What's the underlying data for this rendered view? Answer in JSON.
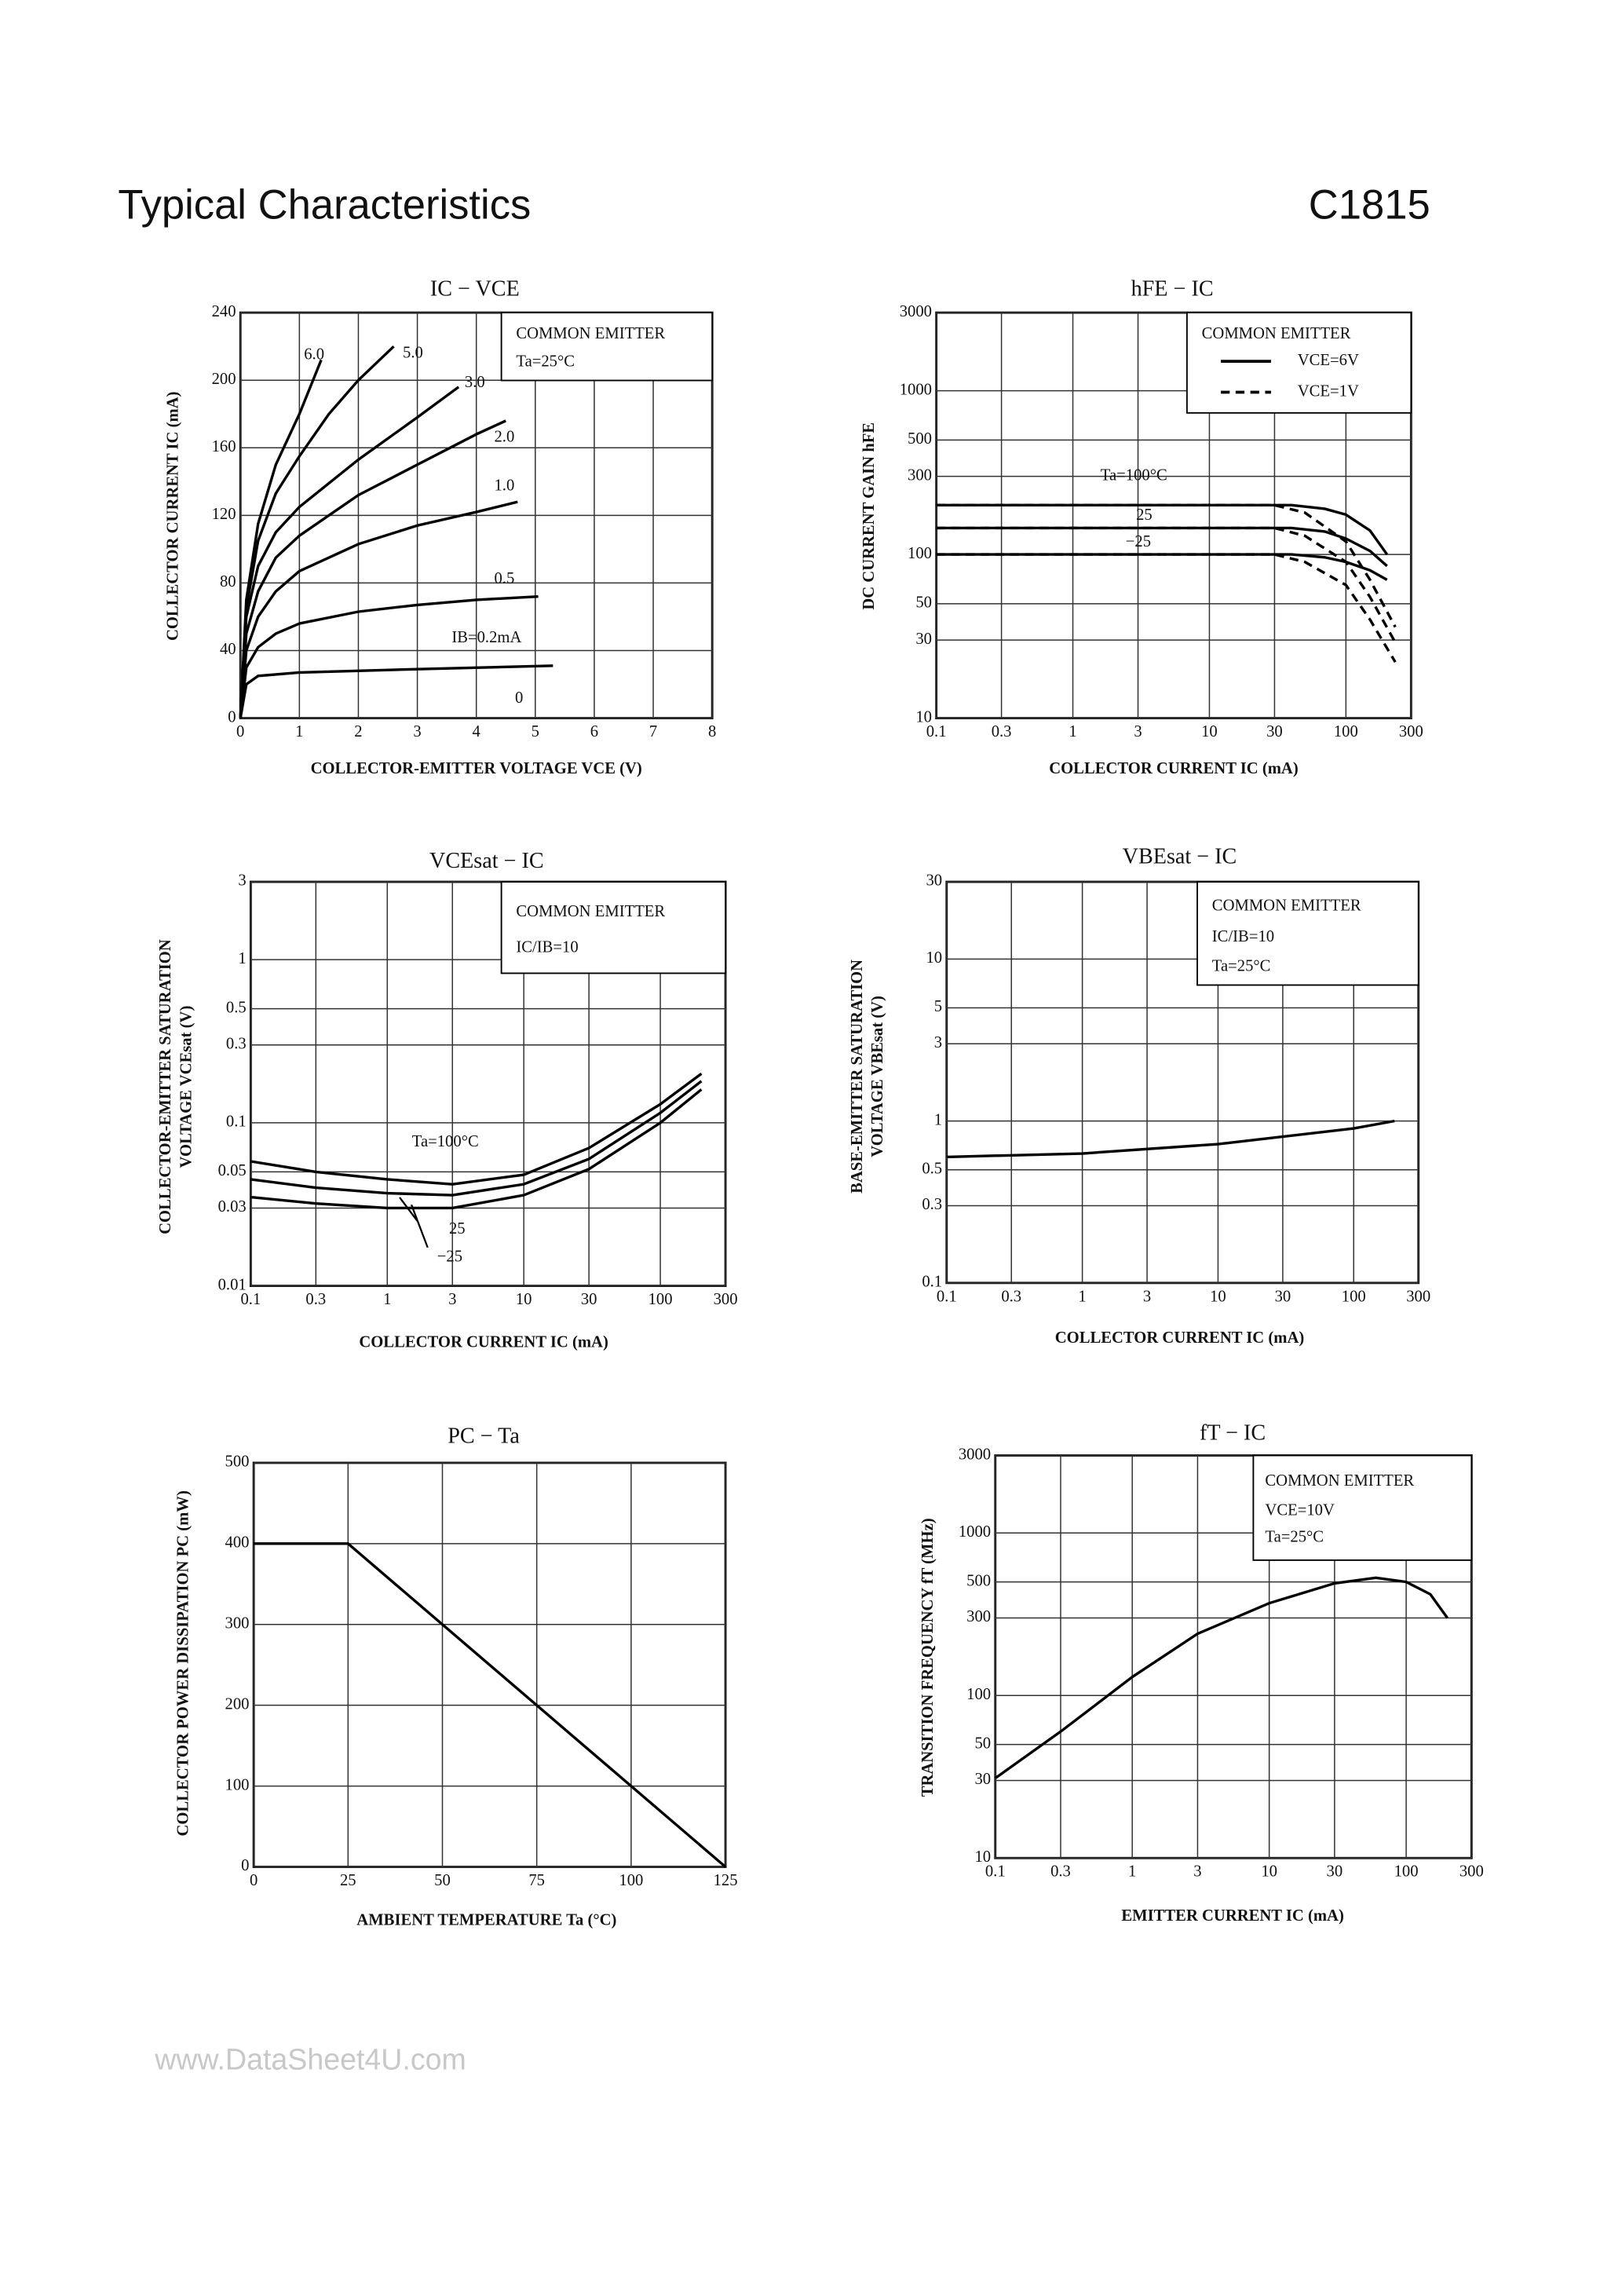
{
  "header": {
    "title": "Typical Characteristics",
    "part": "C1815",
    "watermark": "www.DataSheet4U.com"
  },
  "chart_data": [
    {
      "type": "line",
      "title": "IC − VCE",
      "xlabel": "COLLECTOR-EMITTER VOLTAGE VCE (V)",
      "ylabel": "COLLECTOR CURRENT IC (mA)",
      "xlim": [
        0,
        8
      ],
      "ylim": [
        0,
        240
      ],
      "xticks": [
        0,
        1,
        2,
        3,
        4,
        5,
        6,
        7,
        8
      ],
      "yticks": [
        0,
        40,
        80,
        120,
        160,
        200,
        240
      ],
      "xlog": false,
      "ylog": false,
      "grid": true,
      "box": [
        "COMMON EMITTER",
        "Ta=25°C"
      ],
      "labels": [
        "6.0",
        "5.0",
        "3.0",
        "2.0",
        "1.0",
        "0.5",
        "IB=0.2mA",
        "0"
      ],
      "series": [
        {
          "color": "#000000",
          "dash": false,
          "x": [
            0,
            0.1,
            0.3,
            0.6,
            1.0,
            1.37
          ],
          "values": [
            0,
            70,
            115,
            150,
            180,
            212
          ]
        },
        {
          "color": "#000000",
          "dash": false,
          "x": [
            0,
            0.1,
            0.3,
            0.6,
            1,
            1.5,
            2,
            2.6
          ],
          "values": [
            0,
            65,
            105,
            133,
            155,
            180,
            200,
            220
          ]
        },
        {
          "color": "#000000",
          "dash": false,
          "x": [
            0,
            0.1,
            0.3,
            0.6,
            1,
            2,
            3,
            3.7
          ],
          "values": [
            0,
            60,
            90,
            110,
            125,
            153,
            178,
            196
          ]
        },
        {
          "color": "#000000",
          "dash": false,
          "x": [
            0,
            0.1,
            0.3,
            0.6,
            1,
            2,
            3,
            4,
            4.5
          ],
          "values": [
            0,
            50,
            75,
            95,
            108,
            132,
            150,
            168,
            176
          ]
        },
        {
          "color": "#000000",
          "dash": false,
          "x": [
            0,
            0.1,
            0.3,
            0.6,
            1,
            2,
            3,
            4,
            4.7
          ],
          "values": [
            0,
            40,
            60,
            75,
            87,
            103,
            114,
            122,
            128
          ]
        },
        {
          "color": "#000000",
          "dash": false,
          "x": [
            0,
            0.1,
            0.3,
            0.6,
            1,
            2,
            3,
            4,
            5.05
          ],
          "values": [
            0,
            30,
            42,
            50,
            56,
            63,
            67,
            70,
            72
          ]
        },
        {
          "color": "#000000",
          "dash": false,
          "x": [
            0,
            0.1,
            0.3,
            1,
            3,
            5.3
          ],
          "values": [
            0,
            20,
            25,
            27,
            29,
            31
          ]
        }
      ]
    },
    {
      "type": "line",
      "title": "hFE − IC",
      "xlabel": "COLLECTOR CURRENT IC (mA)",
      "ylabel": "DC CURRENT GAIN hFE",
      "xlim": [
        0.1,
        300
      ],
      "ylim": [
        10,
        3000
      ],
      "xticks": [
        0.1,
        0.3,
        1,
        3,
        10,
        30,
        100,
        300
      ],
      "yticks": [
        10,
        30,
        50,
        100,
        300,
        500,
        1000,
        3000
      ],
      "xlog": true,
      "ylog": true,
      "grid": true,
      "box": [
        "COMMON EMITTER"
      ],
      "legend": [
        {
          "label": "VCE=6V",
          "dash": false
        },
        {
          "label": "VCE=1V",
          "dash": true
        }
      ],
      "labels": [
        "Ta=100°C",
        "25",
        "−25"
      ],
      "series": [
        {
          "color": "#000000",
          "dash": false,
          "x": [
            0.1,
            40,
            70,
            100,
            150,
            200
          ],
          "values": [
            200,
            200,
            190,
            175,
            140,
            100
          ]
        },
        {
          "color": "#000000",
          "dash": false,
          "x": [
            0.1,
            40,
            70,
            100,
            150,
            200
          ],
          "values": [
            145,
            145,
            138,
            125,
            105,
            85
          ]
        },
        {
          "color": "#000000",
          "dash": false,
          "x": [
            0.1,
            40,
            70,
            100,
            150,
            200
          ],
          "values": [
            100,
            100,
            96,
            90,
            80,
            70
          ]
        },
        {
          "color": "#000000",
          "dash": true,
          "x": [
            0.1,
            30,
            50,
            100,
            150,
            230
          ],
          "values": [
            200,
            200,
            180,
            120,
            70,
            36
          ]
        },
        {
          "color": "#000000",
          "dash": true,
          "x": [
            0.1,
            30,
            50,
            100,
            150,
            230
          ],
          "values": [
            145,
            145,
            130,
            90,
            55,
            29
          ]
        },
        {
          "color": "#000000",
          "dash": true,
          "x": [
            0.1,
            30,
            50,
            100,
            150,
            230
          ],
          "values": [
            100,
            100,
            90,
            65,
            40,
            22
          ]
        }
      ]
    },
    {
      "type": "line",
      "title": "VCEsat − IC",
      "xlabel": "COLLECTOR CURRENT IC (mA)",
      "ylabel": [
        "COLLECTOR-EMITTER SATURATION",
        "VOLTAGE VCEsat (V)"
      ],
      "xlim": [
        0.1,
        300
      ],
      "ylim": [
        0.01,
        3
      ],
      "xticks": [
        0.1,
        0.3,
        1,
        3,
        10,
        30,
        100,
        300
      ],
      "yticks": [
        0.01,
        0.03,
        0.05,
        0.1,
        0.3,
        0.5,
        1,
        3
      ],
      "xlog": true,
      "ylog": true,
      "grid": true,
      "box": [
        "COMMON EMITTER",
        "IC/IB=10"
      ],
      "labels": [
        "Ta=100°C",
        "25",
        "−25"
      ],
      "series": [
        {
          "color": "#000000",
          "dash": false,
          "x": [
            0.1,
            0.3,
            1,
            3,
            10,
            30,
            100,
            200
          ],
          "values": [
            0.058,
            0.05,
            0.045,
            0.042,
            0.048,
            0.07,
            0.13,
            0.2
          ]
        },
        {
          "color": "#000000",
          "dash": false,
          "x": [
            0.1,
            0.3,
            1,
            3,
            10,
            30,
            100,
            200
          ],
          "values": [
            0.045,
            0.04,
            0.037,
            0.036,
            0.042,
            0.06,
            0.115,
            0.18
          ]
        },
        {
          "color": "#000000",
          "dash": false,
          "x": [
            0.1,
            0.3,
            1,
            3,
            10,
            30,
            100,
            200
          ],
          "values": [
            0.035,
            0.032,
            0.03,
            0.03,
            0.036,
            0.052,
            0.1,
            0.16
          ]
        }
      ]
    },
    {
      "type": "line",
      "title": "VBEsat − IC",
      "xlabel": "COLLECTOR CURRENT IC (mA)",
      "ylabel": [
        "BASE-EMITTER SATURATION",
        "VOLTAGE VBEsat (V)"
      ],
      "xlim": [
        0.1,
        300
      ],
      "ylim": [
        0.1,
        30
      ],
      "xticks": [
        0.1,
        0.3,
        1,
        3,
        10,
        30,
        100,
        300
      ],
      "yticks": [
        0.1,
        0.3,
        0.5,
        1,
        3,
        5,
        10,
        30
      ],
      "xlog": true,
      "ylog": true,
      "grid": true,
      "box": [
        "COMMON EMITTER",
        "IC/IB=10",
        "Ta=25°C"
      ],
      "labels": [],
      "series": [
        {
          "color": "#000000",
          "dash": false,
          "x": [
            0.1,
            1,
            10,
            100,
            200
          ],
          "values": [
            0.6,
            0.63,
            0.72,
            0.9,
            1.0
          ]
        }
      ]
    },
    {
      "type": "line",
      "title": "PC − Ta",
      "xlabel": "AMBIENT TEMPERATURE Ta (°C)",
      "ylabel": "COLLECTOR POWER DISSIPATION PC (mW)",
      "xlim": [
        0,
        125
      ],
      "ylim": [
        0,
        500
      ],
      "xticks": [
        0,
        25,
        50,
        75,
        100,
        125
      ],
      "yticks": [
        0,
        100,
        200,
        300,
        400,
        500
      ],
      "xlog": false,
      "ylog": false,
      "grid": true,
      "box": [],
      "labels": [],
      "series": [
        {
          "color": "#000000",
          "dash": false,
          "x": [
            0,
            25,
            125
          ],
          "values": [
            400,
            400,
            0
          ]
        }
      ]
    },
    {
      "type": "line",
      "title": "fT − IC",
      "xlabel": "EMITTER CURRENT IC (mA)",
      "ylabel": "TRANSITION FREQUENCY fT (MHz)",
      "xlim": [
        0.1,
        300
      ],
      "ylim": [
        10,
        3000
      ],
      "xticks": [
        0.1,
        0.3,
        1,
        3,
        10,
        30,
        100,
        300
      ],
      "yticks": [
        10,
        30,
        50,
        100,
        300,
        500,
        1000,
        3000
      ],
      "xlog": true,
      "ylog": true,
      "grid": true,
      "box": [
        "COMMON EMITTER",
        "VCE=10V",
        "Ta=25°C"
      ],
      "labels": [],
      "series": [
        {
          "color": "#000000",
          "dash": false,
          "x": [
            0.1,
            0.3,
            1,
            3,
            10,
            30,
            60,
            100,
            150,
            200
          ],
          "values": [
            31,
            60,
            130,
            240,
            370,
            490,
            530,
            500,
            420,
            300
          ]
        }
      ]
    }
  ]
}
